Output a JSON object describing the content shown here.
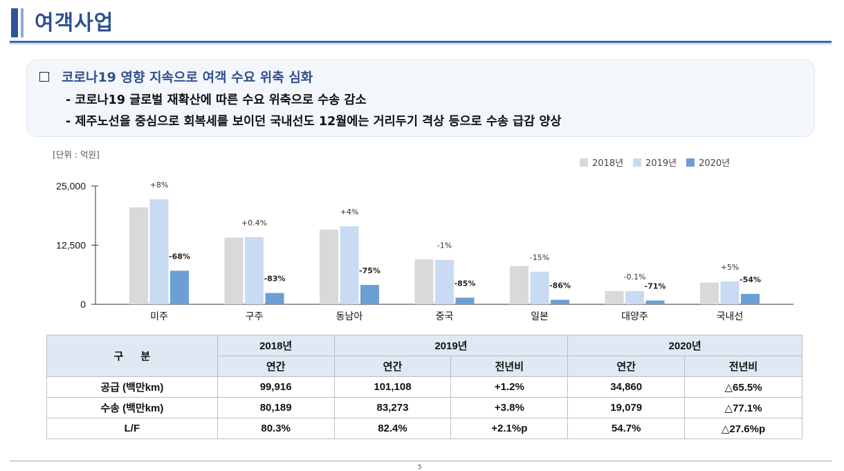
{
  "header": {
    "title": "여객사업"
  },
  "summary": {
    "heading": "코로나19 영향 지속으로 여객 수요 위축 심화",
    "bullets": [
      "- 코로나19 글로벌 재확산에 따른 수요 위축으로 수송 감소",
      "- 제주노선을 중심으로 회복세를 보이던 국내선도 12월에는 거리두기 격상 등으로 수송 급감 양상"
    ]
  },
  "chart_unit": "[단위 : 억원]",
  "colors": {
    "s2018": "#d9d9d9",
    "s2019": "#c9daf3",
    "s2020": "#6d9ed4",
    "title": "#2f4f8f"
  },
  "chart_data": {
    "type": "bar",
    "title": "",
    "unit": "억원",
    "categories": [
      "미주",
      "구주",
      "동남아",
      "중국",
      "일본",
      "대양주",
      "국내선"
    ],
    "series": [
      {
        "name": "2018년",
        "values": [
          20500,
          14100,
          15800,
          9500,
          8100,
          2800,
          4600
        ]
      },
      {
        "name": "2019년",
        "values": [
          22200,
          14200,
          16500,
          9400,
          6900,
          2800,
          4850
        ]
      },
      {
        "name": "2020년",
        "values": [
          7100,
          2400,
          4100,
          1400,
          950,
          800,
          2200
        ]
      }
    ],
    "change_2019": [
      "+8%",
      "+0.4%",
      "+4%",
      "-1%",
      "-15%",
      "-0.1%",
      "+5%"
    ],
    "change_2020": [
      "-68%",
      "-83%",
      "-75%",
      "-85%",
      "-86%",
      "-71%",
      "-54%"
    ],
    "yticks": [
      "25,000",
      "12,500",
      "0"
    ],
    "ytick_values": [
      25000,
      12500,
      0
    ],
    "ylim": [
      0,
      25000
    ],
    "legend_position": "top-right"
  },
  "table": {
    "category_label": "구      분",
    "years": [
      "2018년",
      "2019년",
      "2020년"
    ],
    "sub": {
      "annual": "연간",
      "yoy": "전년비"
    },
    "rows": [
      {
        "label": "공급 (백만km)",
        "y2018": "99,916",
        "y2019": "101,108",
        "y2019_yoy": "+1.2%",
        "y2020": "34,860",
        "y2020_yoy": "△65.5%"
      },
      {
        "label": "수송 (백만km)",
        "y2018": "80,189",
        "y2019": "83,273",
        "y2019_yoy": "+3.8%",
        "y2020": "19,079",
        "y2020_yoy": "△77.1%"
      },
      {
        "label": "L/F",
        "y2018": "80.3%",
        "y2019": "82.4%",
        "y2019_yoy": "+2.1%p",
        "y2020": "54.7%",
        "y2020_yoy": "△27.6%p"
      }
    ]
  },
  "footer": {
    "page": "5"
  }
}
